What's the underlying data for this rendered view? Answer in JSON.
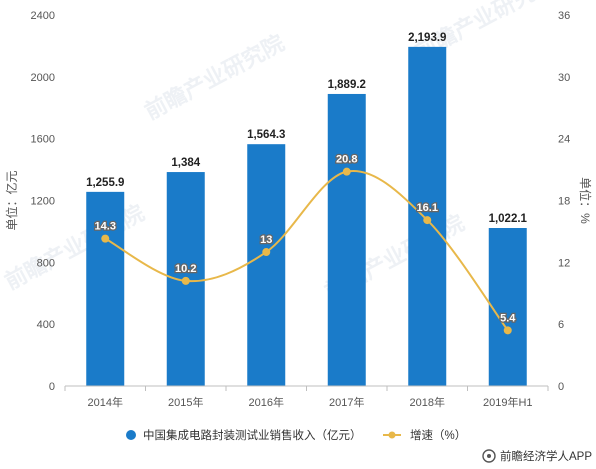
{
  "chart_data": {
    "type": "bar",
    "categories": [
      "2014年",
      "2015年",
      "2016年",
      "2017年",
      "2018年",
      "2019年H1"
    ],
    "series": [
      {
        "name": "中国集成电路封装测试业销售收入（亿元）",
        "type": "bar",
        "axis": "left",
        "values": [
          1255.9,
          1384,
          1564.3,
          1889.2,
          2193.9,
          1022.1
        ],
        "labels": [
          "1,255.9",
          "1,384",
          "1,564.3",
          "1,889.2",
          "2,193.9",
          "1,022.1"
        ],
        "color": "#1a7bc9"
      },
      {
        "name": "增速（%）",
        "type": "line",
        "axis": "right",
        "values": [
          14.3,
          10.2,
          13,
          20.8,
          16.1,
          5.4
        ],
        "labels": [
          "14.3",
          "10.2",
          "13",
          "20.8",
          "16.1",
          "5.4"
        ],
        "color": "#e8b84a"
      }
    ],
    "ylabel": "单位：亿元",
    "y2label": "单位：%",
    "ylim": [
      0,
      2400
    ],
    "yticks": [
      "0",
      "400",
      "800",
      "1200",
      "1600",
      "2000",
      "2400"
    ],
    "y2lim": [
      0,
      36
    ],
    "y2ticks": [
      "0",
      "6",
      "12",
      "18",
      "24",
      "30",
      "36"
    ],
    "legend_position": "bottom",
    "grid": false
  },
  "watermark": "前瞻产业研究院",
  "credit": "前瞻经济学人APP"
}
